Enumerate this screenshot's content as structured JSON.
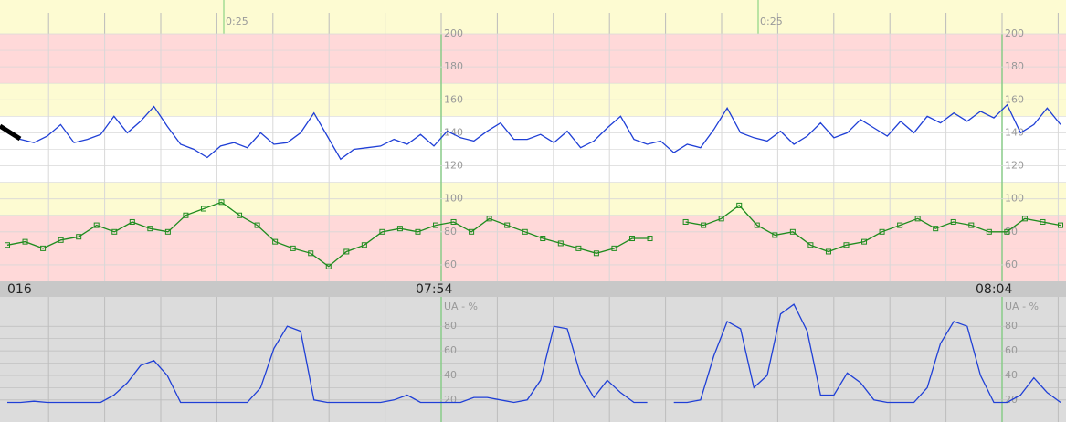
{
  "top_strip": {
    "labels": [
      "0:25",
      "0:25"
    ]
  },
  "time_labels": [
    "016",
    "07:54",
    "08:04"
  ],
  "chart_data": [
    {
      "type": "line",
      "ylim": [
        50,
        200
      ],
      "yticks": [
        60,
        80,
        100,
        120,
        140,
        160,
        180,
        200
      ],
      "bands": [
        {
          "from": 170,
          "to": 200,
          "color": "#ffd9d9"
        },
        {
          "from": 150,
          "to": 170,
          "color": "#fdfbd2"
        },
        {
          "from": 110,
          "to": 150,
          "color": "#ffffff"
        },
        {
          "from": 90,
          "to": 110,
          "color": "#fdfbd2"
        },
        {
          "from": 50,
          "to": 90,
          "color": "#ffd9d9"
        }
      ],
      "series": [
        {
          "color": "#1f3fd6",
          "marker": "none",
          "values": [
            140,
            136,
            134,
            138,
            145,
            134,
            136,
            139,
            150,
            140,
            147,
            156,
            144,
            133,
            130,
            125,
            132,
            134,
            131,
            140,
            133,
            134,
            140,
            152,
            138,
            124,
            130,
            131,
            132,
            136,
            133,
            139,
            132,
            141,
            137,
            135,
            141,
            146,
            136,
            136,
            139,
            134,
            141,
            131,
            135,
            143,
            150,
            136,
            133,
            135,
            128,
            133,
            131,
            142,
            155,
            140,
            137,
            135,
            141,
            133,
            138,
            146,
            137,
            140,
            148,
            143,
            138,
            147,
            140,
            150,
            146,
            152,
            147,
            153,
            149,
            157,
            140,
            145,
            155,
            145
          ]
        },
        {
          "color": "#1e8c1e",
          "marker": "square",
          "values": [
            72,
            74,
            70,
            75,
            77,
            84,
            80,
            86,
            82,
            80,
            90,
            94,
            98,
            90,
            84,
            74,
            70,
            67,
            59,
            68,
            72,
            80,
            82,
            80,
            84,
            86,
            80,
            88,
            84,
            80,
            76,
            73,
            70,
            67,
            70,
            76,
            76,
            null,
            86,
            84,
            88,
            96,
            84,
            78,
            80,
            72,
            68,
            72,
            74,
            80,
            84,
            88,
            82,
            86,
            84,
            80,
            80,
            88,
            86,
            84
          ]
        }
      ]
    },
    {
      "type": "line",
      "axis_label": "UA - %",
      "ylim": [
        2,
        104
      ],
      "yticks": [
        20,
        40,
        60,
        80
      ],
      "series": [
        {
          "color": "#1f3fd6",
          "marker": "none",
          "values": [
            18,
            18,
            19,
            18,
            18,
            18,
            18,
            18,
            24,
            34,
            48,
            52,
            40,
            18,
            18,
            18,
            18,
            18,
            18,
            30,
            62,
            80,
            76,
            20,
            18,
            18,
            18,
            18,
            18,
            20,
            24,
            18,
            18,
            18,
            18,
            22,
            22,
            20,
            18,
            20,
            36,
            80,
            78,
            40,
            22,
            36,
            26,
            18,
            18,
            null,
            18,
            18,
            20,
            56,
            84,
            78,
            30,
            40,
            90,
            98,
            76,
            24,
            24,
            42,
            34,
            20,
            18,
            18,
            18,
            30,
            66,
            84,
            80,
            40,
            18,
            18,
            24,
            38,
            26,
            18
          ]
        }
      ]
    }
  ]
}
